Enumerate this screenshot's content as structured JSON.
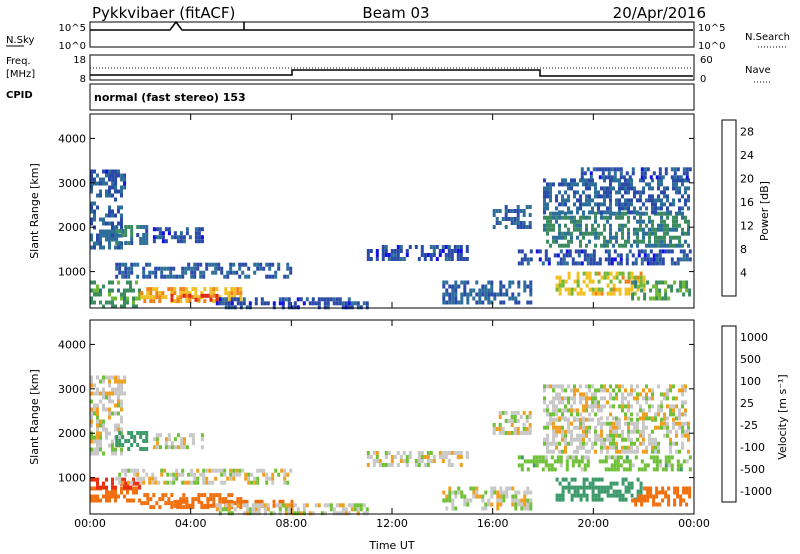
{
  "header": {
    "station": "Pykkvibaer (fitACF)",
    "beam": "Beam 03",
    "date": "20/Apr/2016"
  },
  "status_panels": {
    "nsky_label": "N.Sky",
    "nsearch_label": "N.Search",
    "nsky_ticks": [
      "10^5",
      "10^0"
    ],
    "nsearch_ticks": [
      "10^5",
      "10^0"
    ],
    "freq_label": "Freq.",
    "freq_unit": "[MHz]",
    "freq_ticks": [
      "18",
      "8"
    ],
    "nave_label": "Nave",
    "nave_ticks": [
      "60",
      "0"
    ],
    "cpid_label": "CPID",
    "cpid_text": "normal (fast stereo) 153"
  },
  "chart_data": [
    {
      "type": "heatmap",
      "title": "",
      "xlabel": "",
      "ylabel": "Slant Range [km]",
      "x_ticks": [
        "00:00",
        "04:00",
        "08:00",
        "12:00",
        "16:00",
        "20:00",
        "00:00"
      ],
      "xlim_hours": [
        0,
        24
      ],
      "y_ticks": [
        "1000",
        "2000",
        "3000",
        "4000"
      ],
      "ylim_km": [
        180,
        4550
      ],
      "colorbar_label": "Power [dB]",
      "colorbar_ticks": [
        "4",
        "8",
        "12",
        "16",
        "20",
        "24",
        "28"
      ],
      "colorbar_range": [
        0,
        30
      ],
      "regions": [
        {
          "t": [
            0.0,
            1.2
          ],
          "r": [
            1500,
            3300
          ],
          "v": 8
        },
        {
          "t": [
            0.6,
            1.4
          ],
          "r": [
            2900,
            3300
          ],
          "v": 6
        },
        {
          "t": [
            1.0,
            2.2
          ],
          "r": [
            1650,
            2050
          ],
          "v": 10
        },
        {
          "t": [
            0.0,
            2.0
          ],
          "r": [
            200,
            800
          ],
          "v": 14
        },
        {
          "t": [
            1.0,
            8.0
          ],
          "r": [
            900,
            1200
          ],
          "v": 8
        },
        {
          "t": [
            2.0,
            6.0
          ],
          "r": [
            350,
            650
          ],
          "v": 22
        },
        {
          "t": [
            3.2,
            5.0
          ],
          "r": [
            350,
            500
          ],
          "v": 28
        },
        {
          "t": [
            5.0,
            11.0
          ],
          "r": [
            220,
            420
          ],
          "v": 6
        },
        {
          "t": [
            2.5,
            4.5
          ],
          "r": [
            1700,
            2000
          ],
          "v": 6
        },
        {
          "t": [
            16.0,
            17.5
          ],
          "r": [
            2000,
            2500
          ],
          "v": 8
        },
        {
          "t": [
            18.0,
            23.8
          ],
          "r": [
            1550,
            2350
          ],
          "v": 12
        },
        {
          "t": [
            18.0,
            23.8
          ],
          "r": [
            2350,
            3100
          ],
          "v": 8
        },
        {
          "t": [
            19.5,
            23.8
          ],
          "r": [
            3150,
            3350
          ],
          "v": 6
        },
        {
          "t": [
            17.0,
            23.8
          ],
          "r": [
            1200,
            1500
          ],
          "v": 6
        },
        {
          "t": [
            18.5,
            22.0
          ],
          "r": [
            500,
            1000
          ],
          "v": 20
        },
        {
          "t": [
            21.5,
            23.8
          ],
          "r": [
            400,
            800
          ],
          "v": 14
        },
        {
          "t": [
            14.0,
            17.5
          ],
          "r": [
            300,
            800
          ],
          "v": 8
        },
        {
          "t": [
            11.0,
            15.0
          ],
          "r": [
            1300,
            1600
          ],
          "v": 6
        }
      ]
    },
    {
      "type": "heatmap",
      "title": "",
      "xlabel": "Time UT",
      "ylabel": "Slant Range [km]",
      "x_ticks": [
        "00:00",
        "04:00",
        "08:00",
        "12:00",
        "16:00",
        "20:00",
        "00:00"
      ],
      "xlim_hours": [
        0,
        24
      ],
      "y_ticks": [
        "1000",
        "2000",
        "3000",
        "4000"
      ],
      "ylim_km": [
        180,
        4550
      ],
      "colorbar_label": "Velocity [m s⁻¹]",
      "colorbar_ticks": [
        "1000",
        "500",
        "100",
        "25",
        "-25",
        "-100",
        "-500",
        "-1000"
      ],
      "regions": [
        {
          "t": [
            0.0,
            1.2
          ],
          "r": [
            1500,
            3300
          ],
          "v": 0
        },
        {
          "t": [
            0.6,
            1.4
          ],
          "r": [
            2900,
            3300
          ],
          "v": 0
        },
        {
          "t": [
            1.0,
            2.2
          ],
          "r": [
            1650,
            2050
          ],
          "v": 300
        },
        {
          "t": [
            0.0,
            2.0
          ],
          "r": [
            500,
            800
          ],
          "v": -200
        },
        {
          "t": [
            0.0,
            2.0
          ],
          "r": [
            800,
            1000
          ],
          "v": -600
        },
        {
          "t": [
            1.0,
            8.0
          ],
          "r": [
            900,
            1200
          ],
          "v": 0
        },
        {
          "t": [
            2.0,
            6.0
          ],
          "r": [
            350,
            650
          ],
          "v": -150
        },
        {
          "t": [
            3.2,
            8.0
          ],
          "r": [
            350,
            500
          ],
          "v": -250
        },
        {
          "t": [
            5.0,
            11.0
          ],
          "r": [
            220,
            420
          ],
          "v": 0
        },
        {
          "t": [
            2.5,
            4.5
          ],
          "r": [
            1700,
            2000
          ],
          "v": 0
        },
        {
          "t": [
            16.0,
            17.5
          ],
          "r": [
            2000,
            2500
          ],
          "v": 0
        },
        {
          "t": [
            18.0,
            23.8
          ],
          "r": [
            1550,
            2350
          ],
          "v": 0
        },
        {
          "t": [
            18.0,
            23.8
          ],
          "r": [
            2350,
            3100
          ],
          "v": 0
        },
        {
          "t": [
            17.0,
            23.8
          ],
          "r": [
            1200,
            1500
          ],
          "v": 60
        },
        {
          "t": [
            18.5,
            22.0
          ],
          "r": [
            500,
            1000
          ],
          "v": 200
        },
        {
          "t": [
            21.5,
            23.8
          ],
          "r": [
            400,
            800
          ],
          "v": -200
        },
        {
          "t": [
            14.0,
            17.5
          ],
          "r": [
            300,
            800
          ],
          "v": 0
        },
        {
          "t": [
            11.0,
            15.0
          ],
          "r": [
            1300,
            1600
          ],
          "v": 0
        }
      ]
    }
  ],
  "colors": {
    "power_scale": [
      "#1010e0",
      "#2a4aa8",
      "#2e6e9a",
      "#3c8c60",
      "#70b838",
      "#f0c020",
      "#f08018",
      "#e02818"
    ],
    "velocity_scale": [
      "#2e2eb4",
      "#3a6ab0",
      "#3c9a6a",
      "#70c038",
      "#c8c8c8",
      "#f0a020",
      "#f07010",
      "#e83010"
    ],
    "gray": "#c8c8c8"
  }
}
